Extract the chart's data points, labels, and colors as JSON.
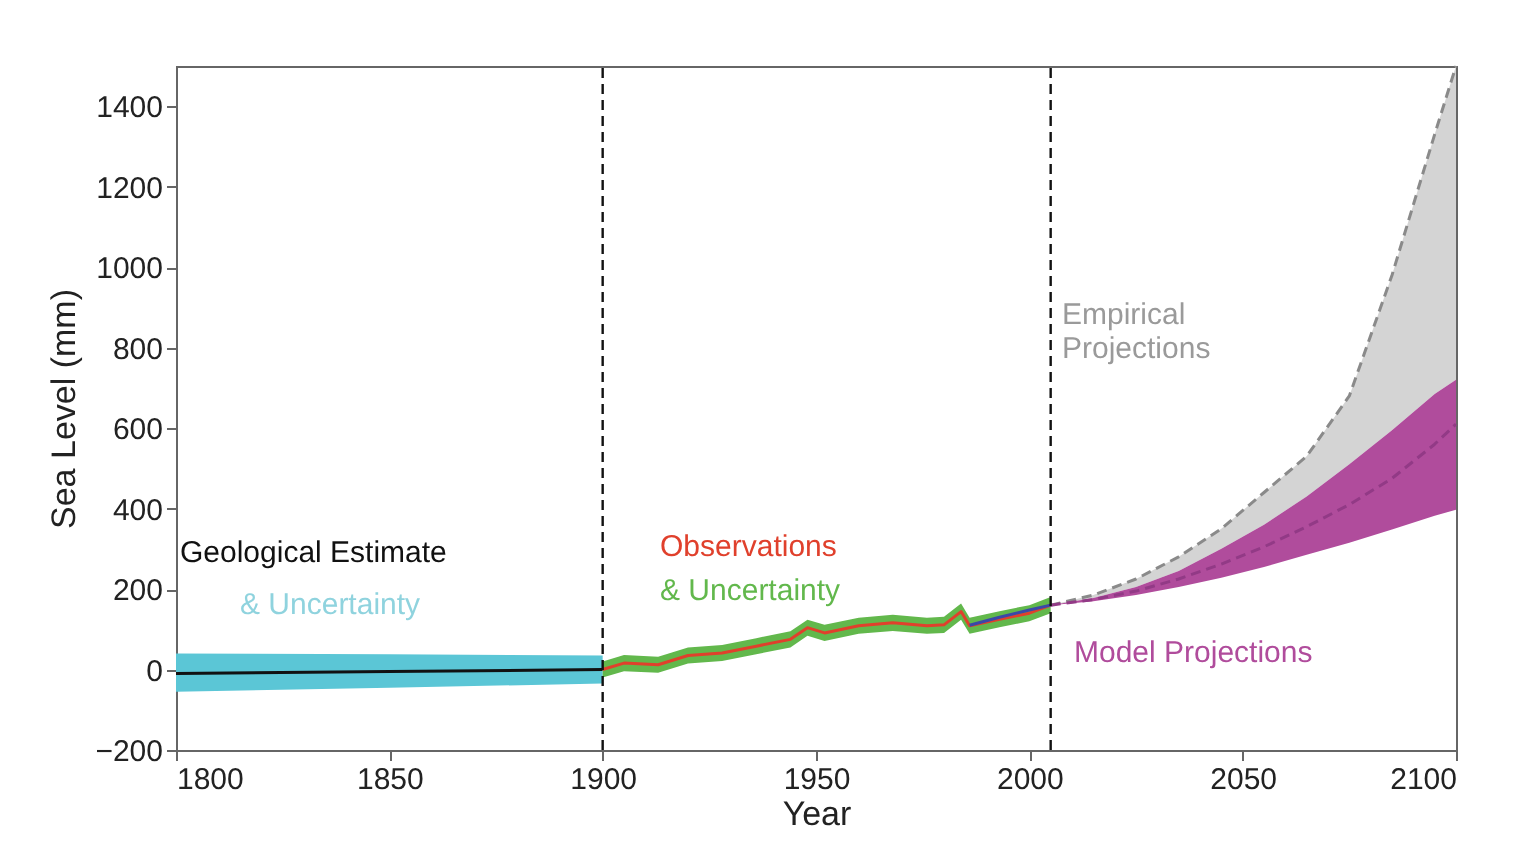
{
  "chart_data": {
    "type": "line",
    "xlabel": "Year",
    "ylabel": "Sea Level (mm)",
    "xlim": [
      1800,
      2100
    ],
    "xticks": [
      1800,
      1850,
      1900,
      1950,
      2000,
      2050,
      2100
    ],
    "ylim": [
      -200,
      1500
    ],
    "yticks": [
      -200,
      0,
      200,
      400,
      600,
      800,
      1000,
      1200,
      1400
    ],
    "grid": false,
    "series": [
      {
        "color": "#111111",
        "x": [
          1800,
          1850,
          1900
        ],
        "values": [
          -10,
          -5,
          0
        ],
        "lower": [
          -55,
          -45,
          -35
        ],
        "upper": [
          40,
          38,
          35
        ]
      },
      {
        "color": "#e0402c",
        "x": [
          1900,
          1905,
          1913,
          1920,
          1928,
          1936,
          1944,
          1948,
          1952,
          1960,
          1968,
          1976,
          1980,
          1984,
          1986,
          1993,
          2000,
          2005
        ],
        "values": [
          0,
          16,
          12,
          35,
          41,
          58,
          75,
          104,
          91,
          109,
          116,
          109,
          111,
          144,
          109,
          125,
          140,
          160
        ],
        "lower": [
          -20,
          -4,
          -8,
          15,
          21,
          38,
          55,
          84,
          71,
          89,
          96,
          89,
          91,
          124,
          89,
          105,
          120,
          140
        ],
        "upper": [
          20,
          36,
          32,
          55,
          61,
          78,
          95,
          124,
          111,
          129,
          136,
          129,
          131,
          164,
          129,
          145,
          160,
          180
        ]
      },
      {
        "color": "#3a48a8",
        "x": [
          1986,
          1993,
          2000,
          2005
        ],
        "values": [
          110,
          130,
          148,
          160
        ]
      },
      {
        "color": "#8a8a8a",
        "line_style": "dashed",
        "x": [
          2005,
          2015,
          2025,
          2035,
          2045,
          2055,
          2065,
          2075,
          2085,
          2095,
          2100
        ],
        "values": [
          160,
          185,
          225,
          280,
          350,
          440,
          530,
          680,
          980,
          1330,
          1500
        ],
        "lower": [
          160,
          178,
          205,
          245,
          300,
          360,
          430,
          510,
          595,
          685,
          720
        ],
        "upper": [
          160,
          185,
          225,
          280,
          350,
          440,
          530,
          680,
          980,
          1330,
          1500
        ]
      },
      {
        "color": "#923a86",
        "line_style": "dashed",
        "x": [
          2005,
          2015,
          2025,
          2035,
          2045,
          2055,
          2065,
          2075,
          2085,
          2095,
          2100
        ],
        "values": [
          160,
          174,
          195,
          225,
          262,
          305,
          355,
          410,
          475,
          560,
          610
        ],
        "lower": [
          160,
          170,
          185,
          205,
          228,
          255,
          285,
          315,
          348,
          382,
          397
        ],
        "upper": [
          160,
          178,
          205,
          245,
          300,
          360,
          430,
          510,
          595,
          685,
          720
        ]
      }
    ],
    "ref_lines": [
      {
        "axis": "x",
        "value": 1900,
        "line_style": "dashed",
        "color": "#111111"
      },
      {
        "axis": "x",
        "value": 2005,
        "line_style": "dashed",
        "color": "#111111"
      }
    ],
    "annotations": [
      "Geological Estimate",
      "& Uncertainty",
      "Observations",
      "& Uncertainty",
      "Empirical\nProjections",
      "Model Projections"
    ]
  }
}
